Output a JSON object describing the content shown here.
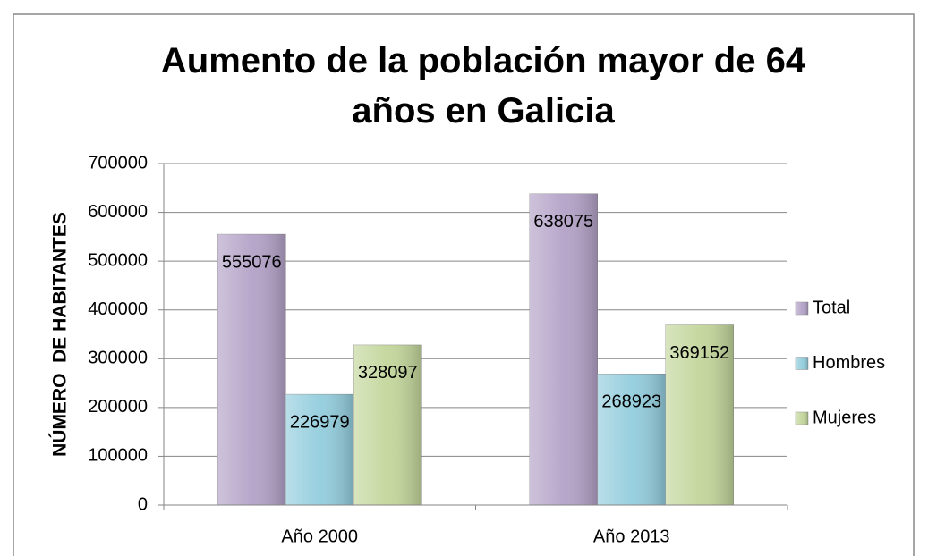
{
  "chart_data": {
    "type": "bar",
    "title": "Aumento de la población mayor de 64 años en Galicia",
    "y_label": "NÚMERO  DE HABITANTES",
    "categories": [
      "Año 2000",
      "Año 2013"
    ],
    "series": [
      {
        "name": "Total",
        "color": "#b3a2c7",
        "values": [
          555076,
          638075
        ]
      },
      {
        "name": "Hombres",
        "color": "#93cddd",
        "values": [
          226979,
          268923
        ]
      },
      {
        "name": "Mujeres",
        "color": "#c3d69b",
        "values": [
          328097,
          369152
        ]
      }
    ],
    "ylim": [
      0,
      700000
    ],
    "yticks": [
      0,
      100000,
      200000,
      300000,
      400000,
      500000,
      600000,
      700000
    ],
    "grid": true,
    "legend": "right"
  }
}
